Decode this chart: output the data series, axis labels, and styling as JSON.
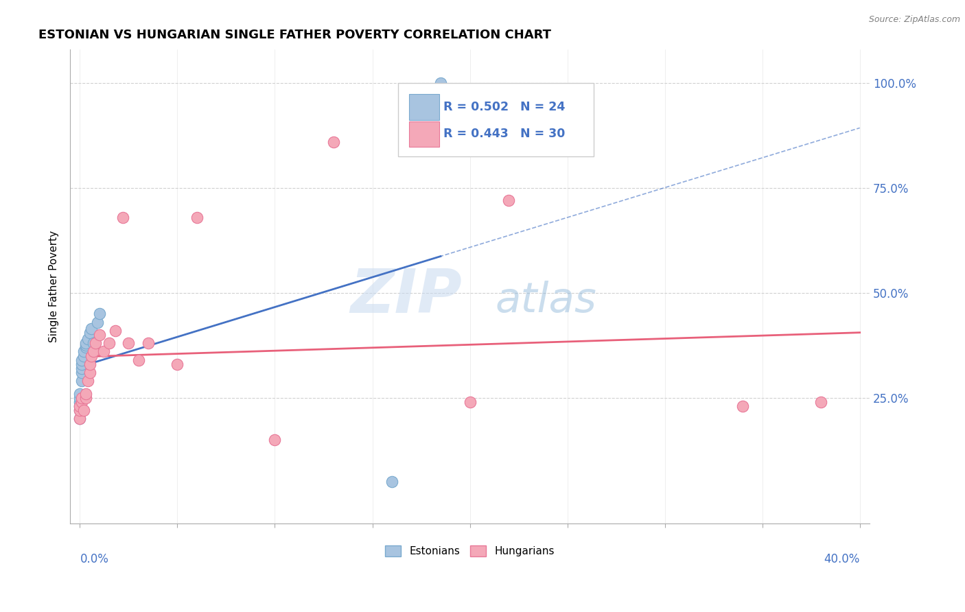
{
  "title": "ESTONIAN VS HUNGARIAN SINGLE FATHER POVERTY CORRELATION CHART",
  "source": "Source: ZipAtlas.com",
  "ylabel": "Single Father Poverty",
  "R_estonian": 0.502,
  "N_estonian": 24,
  "R_hungarian": 0.443,
  "N_hungarian": 30,
  "estonian_color": "#a8c4e0",
  "estonian_edge": "#7aaace",
  "hungarian_color": "#f4a8b8",
  "hungarian_edge": "#e87898",
  "estonian_line_color": "#4472c4",
  "hungarian_line_color": "#e8607a",
  "axis_label_color": "#4472c4",
  "grid_color": "#d0d0d0",
  "xlim": [
    0.0,
    0.4
  ],
  "ylim": [
    -0.05,
    1.08
  ],
  "yticks": [
    0.25,
    0.5,
    0.75,
    1.0
  ],
  "ytick_labels": [
    "25.0%",
    "50.0%",
    "75.0%",
    "100.0%"
  ],
  "estonian_x": [
    0.0,
    0.0,
    0.0,
    0.0,
    0.0,
    0.0,
    0.001,
    0.001,
    0.001,
    0.001,
    0.001,
    0.002,
    0.002,
    0.003,
    0.003,
    0.003,
    0.004,
    0.005,
    0.006,
    0.007,
    0.009,
    0.01,
    0.16,
    0.185
  ],
  "estonian_y": [
    0.2,
    0.22,
    0.23,
    0.24,
    0.25,
    0.26,
    0.29,
    0.31,
    0.32,
    0.33,
    0.34,
    0.35,
    0.36,
    0.37,
    0.375,
    0.38,
    0.39,
    0.405,
    0.415,
    0.38,
    0.43,
    0.45,
    0.05,
    1.0
  ],
  "hungarian_x": [
    0.0,
    0.0,
    0.0,
    0.001,
    0.001,
    0.002,
    0.003,
    0.003,
    0.004,
    0.005,
    0.005,
    0.006,
    0.007,
    0.008,
    0.01,
    0.012,
    0.015,
    0.018,
    0.022,
    0.025,
    0.03,
    0.035,
    0.05,
    0.06,
    0.1,
    0.13,
    0.2,
    0.22,
    0.34,
    0.38
  ],
  "hungarian_y": [
    0.2,
    0.22,
    0.23,
    0.24,
    0.25,
    0.22,
    0.25,
    0.26,
    0.29,
    0.31,
    0.33,
    0.35,
    0.36,
    0.38,
    0.4,
    0.36,
    0.38,
    0.41,
    0.68,
    0.38,
    0.34,
    0.38,
    0.33,
    0.68,
    0.15,
    0.86,
    0.24,
    0.72,
    0.23,
    0.24
  ]
}
